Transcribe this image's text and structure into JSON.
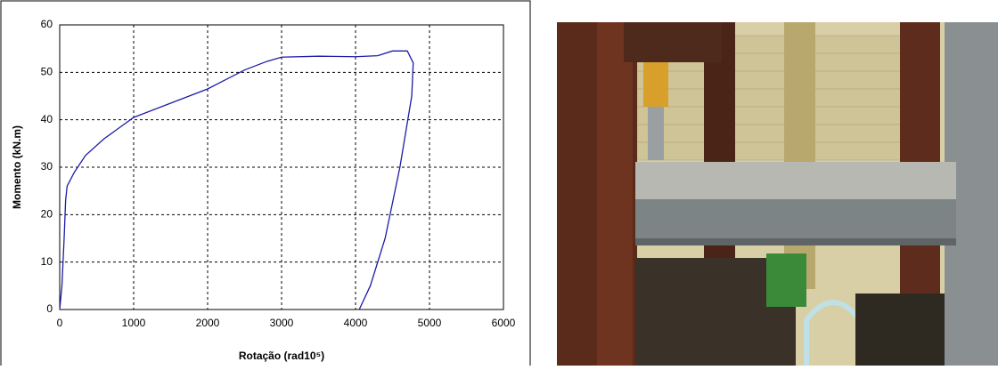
{
  "chart_data": {
    "type": "line",
    "x_label": "Rotação (rad10⁵)",
    "y_label": "Momento (kN.m)",
    "xlim": [
      0,
      6000
    ],
    "xticks": [
      0,
      1000,
      2000,
      3000,
      4000,
      5000,
      6000
    ],
    "ylim": [
      0,
      60
    ],
    "yticks": [
      0,
      10,
      20,
      30,
      40,
      50,
      60
    ],
    "grid": true,
    "series": [
      {
        "color": "#1c1ca8",
        "x": [
          0,
          30,
          60,
          80,
          100,
          200,
          350,
          600,
          1000,
          1500,
          2000,
          2500,
          2800,
          3000,
          3500,
          4000,
          4300,
          4500,
          4700,
          4780,
          4760,
          4600,
          4400,
          4200,
          4050
        ],
        "values": [
          0,
          5,
          15,
          23,
          26,
          29,
          32.5,
          36,
          40.5,
          43.5,
          46.5,
          50.5,
          52.3,
          53.2,
          53.4,
          53.3,
          53.5,
          54.5,
          54.5,
          52,
          45,
          30,
          15,
          5,
          0
        ]
      }
    ]
  }
}
